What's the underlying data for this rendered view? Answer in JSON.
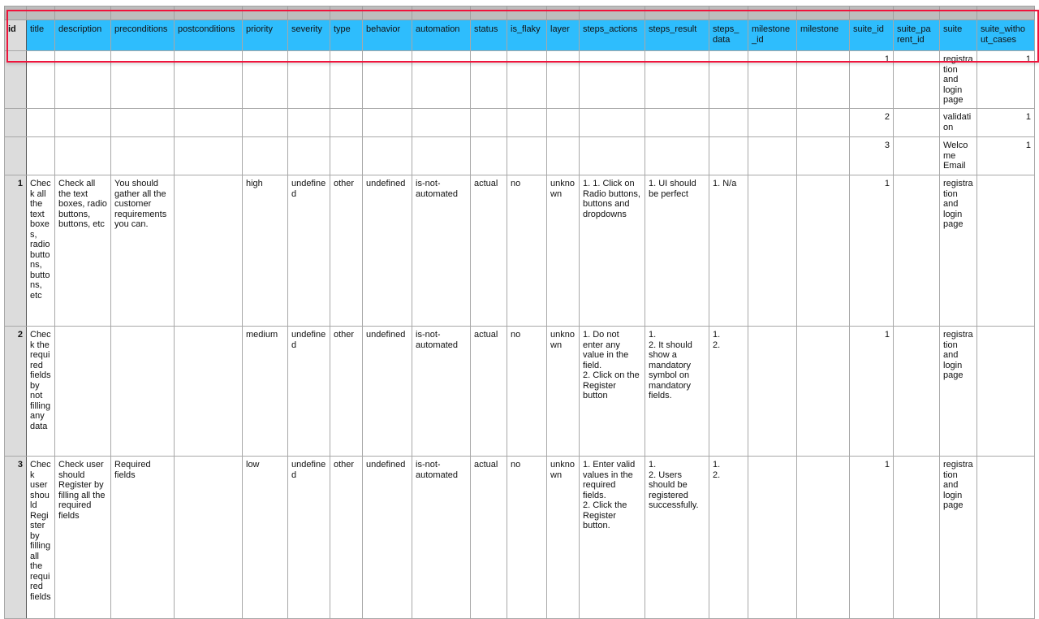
{
  "columns": [
    "id",
    "title",
    "description",
    "preconditions",
    "postconditions",
    "priority",
    "severity",
    "type",
    "behavior",
    "automation",
    "status",
    "is_flaky",
    "layer",
    "steps_actions",
    "steps_result",
    "steps_data",
    "milestone_id",
    "milestone",
    "suite_id",
    "suite_parent_id",
    "suite",
    "suite_without_cases"
  ],
  "column_labels": [
    "id",
    "title",
    "description",
    "preconditions",
    "postconditions",
    "priority",
    "severity",
    "type",
    "behavior",
    "automation",
    "status",
    "is_flaky",
    "layer",
    "steps_actions",
    "steps_result",
    "steps_ data",
    "milestone _id",
    "milestone",
    "suite_id",
    "suite_pa rent_id",
    "suite",
    "suite_witho ut_cases"
  ],
  "rows": [
    [
      "",
      "",
      "",
      "",
      "",
      "",
      "",
      "",
      "",
      "",
      "",
      "",
      "",
      "",
      "",
      "",
      "",
      "",
      "1",
      "",
      "registration and login page",
      "1"
    ],
    [
      "",
      "",
      "",
      "",
      "",
      "",
      "",
      "",
      "",
      "",
      "",
      "",
      "",
      "",
      "",
      "",
      "",
      "",
      "2",
      "",
      "validation",
      "1"
    ],
    [
      "",
      "",
      "",
      "",
      "",
      "",
      "",
      "",
      "",
      "",
      "",
      "",
      "",
      "",
      "",
      "",
      "",
      "",
      "3",
      "",
      "Welcome Email",
      "1"
    ],
    [
      "1",
      "Check all the text boxes, radio buttons, buttons, etc",
      "Check all the text boxes, radio buttons, buttons, etc",
      "You should gather all the customer requirements you can.",
      "",
      "high",
      "undefined",
      "other",
      "undefined",
      "is-not-automated",
      "actual",
      "no",
      "unknown",
      "1. 1. Click on Radio buttons, buttons and dropdowns",
      "1. UI should be perfect",
      "1. N/a",
      "",
      "",
      "1",
      "",
      "registration and login page",
      ""
    ],
    [
      "2",
      "Check the required fields by not filling any data",
      "",
      "",
      "",
      "medium",
      "undefined",
      "other",
      "undefined",
      "is-not-automated",
      "actual",
      "no",
      "unknown",
      "1. Do not enter any value in the field.\n2. Click on the Register button",
      "1.\n2. It should show a mandatory symbol on mandatory fields.",
      "1.\n2.",
      "",
      "",
      "1",
      "",
      "registration and login page",
      ""
    ],
    [
      "3",
      "Check user should Register by filling all the required fields",
      "Check user should Register by filling all the required fields",
      "Required fields",
      "",
      "low",
      "undefined",
      "other",
      "undefined",
      "is-not-automated",
      "actual",
      "no",
      "unknown",
      "1. Enter valid values in the required fields.\n2. Click the Register button.",
      "1.\n2. Users should be registered successfully.",
      "1.\n2.",
      "",
      "",
      "1",
      "",
      "registration and login page",
      ""
    ]
  ],
  "colors": {
    "header": "#2ebdfd",
    "selection": "#f0143c",
    "row_header": "#dcdcdc"
  }
}
